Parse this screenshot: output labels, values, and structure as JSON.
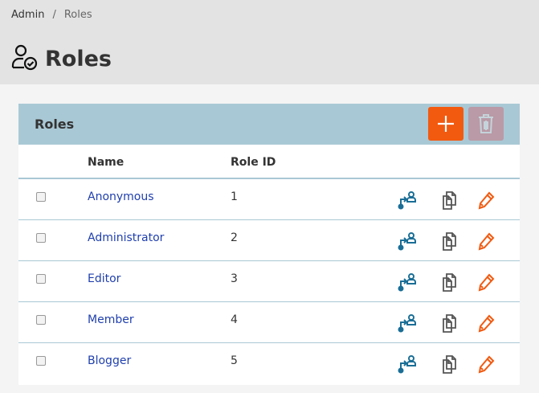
{
  "breadcrumb": {
    "items": [
      "Admin",
      "Roles"
    ]
  },
  "page": {
    "title": "Roles",
    "icon": "user-check-icon"
  },
  "panel": {
    "title": "Roles",
    "add_icon": "plus-icon",
    "delete_icon": "trash-icon"
  },
  "table": {
    "headers": [
      "Name",
      "Role ID"
    ],
    "rows": [
      {
        "name": "Anonymous",
        "id": "1"
      },
      {
        "name": "Administrator",
        "id": "2"
      },
      {
        "name": "Editor",
        "id": "3"
      },
      {
        "name": "Member",
        "id": "4"
      },
      {
        "name": "Blogger",
        "id": "5"
      }
    ]
  },
  "colors": {
    "accent": "#f25a10",
    "header": "#a9c8d5",
    "link": "#1f3fae",
    "assign": "#1a6e96"
  }
}
